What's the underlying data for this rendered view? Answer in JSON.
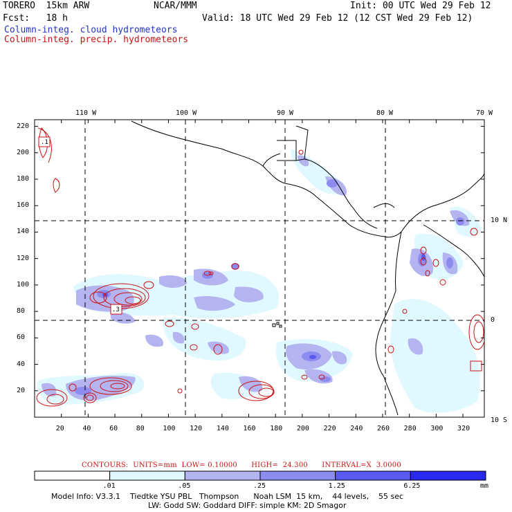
{
  "header": {
    "model": "TORERO  15km ARW",
    "center": "NCAR/MMM",
    "init": "Init: 00 UTC Wed 29 Feb 12",
    "fcst": "Fcst:   18 h",
    "valid": "Valid: 18 UTC Wed 29 Feb 12 (12 CST Wed 29 Feb 12)",
    "field1": "Column-integ. cloud hydrometeors",
    "field2": "Column-integ. precip. hydrometeors"
  },
  "axes": {
    "top_lon_labels": [
      "110 W",
      "100 W",
      "90 W",
      "80 W",
      "70 W"
    ],
    "right_lat_labels": [
      "10 N",
      "0",
      "10 S"
    ],
    "left_y_ticks": [
      "220",
      "200",
      "180",
      "160",
      "140",
      "120",
      "100",
      "80",
      "60",
      "40",
      "20"
    ],
    "bottom_x_ticks": [
      "20",
      "40",
      "60",
      "80",
      "100",
      "120",
      "140",
      "160",
      "180",
      "200",
      "220",
      "240",
      "260",
      "280",
      "300",
      "320"
    ]
  },
  "map_labels": {
    "low_marker_top": ".1",
    "low_marker_mid": ".3"
  },
  "contour_info": "CONTOURS:  UNITS=mm  LOW= 0.10000      HIGH=  24.300      INTERVAL=X  3.0000",
  "colorbar": {
    "labels": [
      ".01",
      ".05",
      ".25",
      "1.25",
      "6.25"
    ],
    "units": "mm",
    "colors": [
      "#ffffff",
      "#e0f8ff",
      "#b4b4f0",
      "#8c8cf0",
      "#5a5af0",
      "#2828ee"
    ]
  },
  "model_info": {
    "line1": "Model Info: V3.3.1    Tiedtke YSU PBL   Thompson      Noah LSM  15 km,    44 levels,    55 sec",
    "line2": "LW: Godd SW: Goddard DIFF: simple KM: 2D Smagor"
  },
  "colors": {
    "cloud_light": "#e0f8ff",
    "cloud_mid": "#b4b4f0",
    "cloud_dark": "#8c8cf0",
    "cloud_deep": "#5a5af0",
    "precip_contour": "#cc1111"
  }
}
